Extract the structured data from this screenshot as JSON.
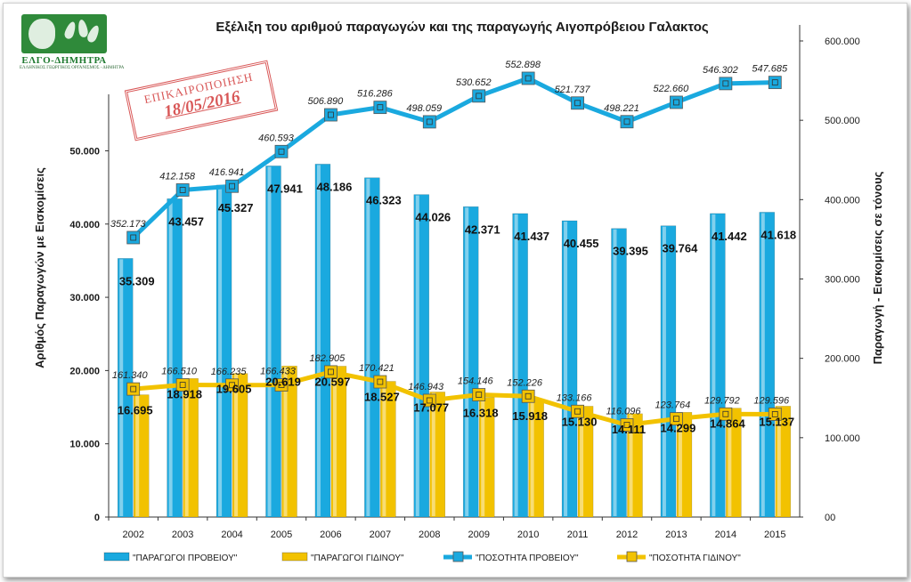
{
  "logo": {
    "name": "ΕΛΓΟ-ΔΗΜΗΤΡΑ",
    "subtitle": "ΕΛΛΗΝΙΚΟΣ ΓΕΩΡΓΙΚΟΣ ΟΡΓΑΝΙΣΜΟΣ - ΔΗΜΗΤΡΑ"
  },
  "stamp": {
    "line1": "ΕΠΙΚΑΙΡΟΠΟΙΗΣΗ",
    "line2": "18/05/2016"
  },
  "colors": {
    "sheep": "#1aa9df",
    "goat": "#f2c200",
    "stamp": "#d23a3a"
  },
  "chart_data": {
    "type": "bar",
    "title": "Εξέλιξη του αριθμού παραγωγών και της παραγωγής Αιγοπρόβειου Γαλακτος",
    "ylabel": "Αριθμός Παραγωγών με Εισκομίσεις",
    "y2label": "Παραγωγή - Εισκομίσεις σε τόνους",
    "ylim": [
      0,
      65000
    ],
    "y2lim": [
      0,
      600000
    ],
    "yticks": [
      "0",
      "10.000",
      "20.000",
      "30.000",
      "40.000",
      "50.000"
    ],
    "yticks_values": [
      0,
      10000,
      20000,
      30000,
      40000,
      50000
    ],
    "y2ticks": [
      "00",
      "100.000",
      "200.000",
      "300.000",
      "400.000",
      "500.000",
      "600.000"
    ],
    "y2ticks_values": [
      0,
      100000,
      200000,
      300000,
      400000,
      500000,
      600000
    ],
    "categories": [
      "2002",
      "2003",
      "2004",
      "2005",
      "2006",
      "2007",
      "2008",
      "2009",
      "2010",
      "2011",
      "2012",
      "2013",
      "2014",
      "2015"
    ],
    "bar_series": [
      {
        "name": "\"ΠΑΡΑΓΩΓΟΙ ΠΡΟΒΕΙΟΥ\"",
        "values": [
          35309,
          43457,
          45327,
          47941,
          48186,
          46323,
          44026,
          42371,
          41437,
          40455,
          39395,
          39764,
          41442,
          41618
        ],
        "labels": [
          "35.309",
          "43.457",
          "45.327",
          "47.941",
          "48.186",
          "46.323",
          "44.026",
          "42.371",
          "41.437",
          "40.455",
          "39.395",
          "39.764",
          "41.442",
          "41.618"
        ]
      },
      {
        "name": "\"ΠΑΡΑΓΩΓΟΙ ΓΙΔΙΝΟΥ\"",
        "values": [
          16695,
          18918,
          19605,
          20619,
          20597,
          18527,
          17077,
          16318,
          15918,
          15130,
          14111,
          14299,
          14864,
          15137
        ],
        "labels": [
          "16.695",
          "18.918",
          "19.605",
          "20.619",
          "20.597",
          "18.527",
          "17.077",
          "16.318",
          "15.918",
          "15.130",
          "14.111",
          "14.299",
          "14.864",
          "15.137"
        ]
      }
    ],
    "line_series": [
      {
        "name": "\"ΠΟΣΟΤΗΤΑ ΠΡΟΒΕΙΟΥ\"",
        "values": [
          352173,
          412158,
          416941,
          460593,
          506890,
          516286,
          498059,
          530652,
          552898,
          521737,
          498221,
          522660,
          546302,
          547685
        ],
        "labels": [
          "352.173",
          "412.158",
          "416.941",
          "460.593",
          "506.890",
          "516.286",
          "498.059",
          "530.652",
          "552.898",
          "521.737",
          "498.221",
          "522.660",
          "546.302",
          "547.685"
        ]
      },
      {
        "name": "\"ΠΟΣΟΤΗΤΑ ΓΙΔΙΝΟΥ\"",
        "values": [
          161340,
          166510,
          166235,
          166433,
          182905,
          170421,
          146943,
          154146,
          152226,
          133166,
          116096,
          123764,
          129792,
          129596
        ],
        "labels": [
          "161.340",
          "166.510",
          "166.235",
          "166.433",
          "182.905",
          "170.421",
          "146.943",
          "154.146",
          "152.226",
          "133.166",
          "116.096",
          "123.764",
          "129.792",
          "129.596"
        ]
      }
    ],
    "legend_position": "bottom",
    "grid": false
  }
}
